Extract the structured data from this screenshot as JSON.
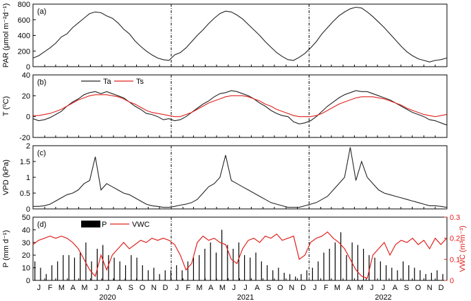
{
  "chart_data": [
    {
      "type": "line",
      "panel_label": "(a)",
      "ylabel": "PAR (μmol m⁻²d⁻¹)",
      "ylim": [
        0,
        800
      ],
      "yticks": [
        0,
        200,
        400,
        600,
        800
      ],
      "x_unit": "day of record (1 Jan 2020 = day 0)",
      "xlim": [
        0,
        1096
      ],
      "series": [
        {
          "color": "#222222",
          "x": [
            0,
            15,
            30,
            45,
            60,
            75,
            90,
            105,
            120,
            135,
            150,
            165,
            180,
            195,
            210,
            225,
            240,
            255,
            270,
            285,
            300,
            315,
            330,
            345,
            360,
            375,
            390,
            405,
            420,
            435,
            450,
            465,
            480,
            495,
            510,
            525,
            540,
            555,
            570,
            585,
            600,
            615,
            630,
            645,
            660,
            675,
            690,
            705,
            720,
            735,
            750,
            765,
            780,
            795,
            810,
            825,
            840,
            855,
            870,
            885,
            900,
            915,
            930,
            945,
            960,
            975,
            990,
            1005,
            1020,
            1035,
            1050,
            1065,
            1080,
            1095
          ],
          "y": [
            110,
            140,
            190,
            240,
            300,
            380,
            420,
            500,
            560,
            620,
            680,
            700,
            690,
            650,
            620,
            560,
            480,
            420,
            330,
            260,
            200,
            150,
            110,
            90,
            80,
            150,
            180,
            240,
            320,
            400,
            470,
            550,
            620,
            680,
            710,
            700,
            660,
            610,
            540,
            470,
            400,
            320,
            250,
            180,
            130,
            90,
            80,
            120,
            170,
            240,
            320,
            420,
            500,
            580,
            650,
            700,
            740,
            760,
            750,
            700,
            640,
            570,
            500,
            420,
            340,
            260,
            190,
            140,
            100,
            80,
            60,
            80,
            90,
            110
          ]
        }
      ]
    },
    {
      "type": "line",
      "panel_label": "(b)",
      "ylabel": "T (⁰C)",
      "ylim": [
        -20,
        40
      ],
      "yticks": [
        -20,
        0,
        20,
        40
      ],
      "legend": [
        "Ta",
        "Ts"
      ],
      "legend_position": "top-left",
      "series": [
        {
          "name": "Ta",
          "color": "#222222",
          "x": [
            0,
            15,
            30,
            45,
            60,
            75,
            90,
            105,
            120,
            135,
            150,
            165,
            180,
            195,
            210,
            225,
            240,
            255,
            270,
            285,
            300,
            315,
            330,
            345,
            360,
            375,
            390,
            405,
            420,
            435,
            450,
            465,
            480,
            495,
            510,
            525,
            540,
            555,
            570,
            585,
            600,
            615,
            630,
            645,
            660,
            675,
            690,
            705,
            720,
            735,
            750,
            765,
            780,
            795,
            810,
            825,
            840,
            855,
            870,
            885,
            900,
            915,
            930,
            945,
            960,
            975,
            990,
            1005,
            1020,
            1035,
            1050,
            1065,
            1080,
            1095
          ],
          "y": [
            -2,
            -4,
            -3,
            -1,
            2,
            5,
            10,
            14,
            17,
            21,
            23,
            24,
            22,
            24,
            22,
            20,
            18,
            14,
            10,
            7,
            3,
            2,
            0,
            -3,
            -2,
            -4,
            -3,
            0,
            4,
            8,
            12,
            15,
            19,
            22,
            23,
            25,
            24,
            22,
            20,
            17,
            13,
            10,
            6,
            3,
            1,
            0,
            -5,
            -7,
            -6,
            -4,
            0,
            5,
            10,
            14,
            18,
            21,
            23,
            25,
            24,
            24,
            22,
            20,
            18,
            16,
            13,
            10,
            7,
            4,
            2,
            0,
            -3,
            -4,
            -6,
            -8
          ]
        },
        {
          "name": "Ts",
          "color": "#e0201b",
          "x": [
            0,
            15,
            30,
            45,
            60,
            75,
            90,
            105,
            120,
            135,
            150,
            165,
            180,
            195,
            210,
            225,
            240,
            255,
            270,
            285,
            300,
            315,
            330,
            345,
            360,
            375,
            390,
            405,
            420,
            435,
            450,
            465,
            480,
            495,
            510,
            525,
            540,
            555,
            570,
            585,
            600,
            615,
            630,
            645,
            660,
            675,
            690,
            705,
            720,
            735,
            750,
            765,
            780,
            795,
            810,
            825,
            840,
            855,
            870,
            885,
            900,
            915,
            930,
            945,
            960,
            975,
            990,
            1005,
            1020,
            1035,
            1050,
            1065,
            1080,
            1095
          ],
          "y": [
            1,
            1,
            2,
            3,
            5,
            7,
            10,
            13,
            16,
            18,
            20,
            21,
            21,
            21,
            20,
            19,
            17,
            14,
            12,
            9,
            6,
            4,
            3,
            2,
            1,
            0,
            0,
            2,
            4,
            7,
            10,
            13,
            15,
            17,
            19,
            20,
            20,
            20,
            19,
            17,
            15,
            12,
            10,
            7,
            5,
            3,
            1,
            0,
            0,
            0,
            1,
            3,
            6,
            9,
            12,
            14,
            16,
            18,
            19,
            19,
            19,
            18,
            17,
            15,
            13,
            11,
            8,
            6,
            4,
            2,
            1,
            0,
            1,
            2
          ]
        }
      ]
    },
    {
      "type": "line",
      "panel_label": "(c)",
      "ylabel": "VPD (kPa)",
      "ylim": [
        0,
        2
      ],
      "yticks": [
        0,
        0.5,
        1,
        1.5,
        2
      ],
      "yticklabels": [
        "0",
        "0.5",
        "1",
        "1.5",
        "2"
      ],
      "series": [
        {
          "color": "#222222",
          "x": [
            0,
            15,
            30,
            45,
            60,
            75,
            90,
            105,
            120,
            135,
            150,
            165,
            180,
            195,
            210,
            225,
            240,
            255,
            270,
            285,
            300,
            315,
            330,
            345,
            360,
            375,
            390,
            405,
            420,
            435,
            450,
            465,
            480,
            495,
            510,
            525,
            540,
            555,
            570,
            585,
            600,
            615,
            630,
            645,
            660,
            675,
            690,
            705,
            720,
            735,
            750,
            765,
            780,
            795,
            810,
            825,
            840,
            855,
            870,
            885,
            900,
            915,
            930,
            945,
            960,
            975,
            990,
            1005,
            1020,
            1035,
            1050,
            1065,
            1080,
            1095
          ],
          "y": [
            0.08,
            0.08,
            0.1,
            0.15,
            0.25,
            0.35,
            0.45,
            0.5,
            0.6,
            0.8,
            0.9,
            1.65,
            0.6,
            0.8,
            0.7,
            0.6,
            0.5,
            0.45,
            0.35,
            0.25,
            0.15,
            0.1,
            0.08,
            0.05,
            0.05,
            0.08,
            0.12,
            0.15,
            0.2,
            0.3,
            0.5,
            0.7,
            0.8,
            1.0,
            1.7,
            0.9,
            0.8,
            0.7,
            0.6,
            0.5,
            0.4,
            0.3,
            0.2,
            0.15,
            0.1,
            0.05,
            0.05,
            0.05,
            0.1,
            0.15,
            0.2,
            0.3,
            0.4,
            0.6,
            0.8,
            1.0,
            1.95,
            0.9,
            1.5,
            1.0,
            0.8,
            0.6,
            0.5,
            0.45,
            0.4,
            0.35,
            0.3,
            0.25,
            0.2,
            0.15,
            0.1,
            0.1,
            0.08,
            0.05
          ]
        }
      ]
    },
    {
      "type": "bar",
      "panel_label": "(d)",
      "ylabel": "P (mm d⁻¹)",
      "ylim": [
        0,
        50
      ],
      "yticks": [
        0,
        10,
        20,
        30,
        40,
        50
      ],
      "legend": [
        "P",
        "VWC"
      ],
      "legend_position": "top-left",
      "series": [
        {
          "name": "P",
          "color": "#000000",
          "axis": "left",
          "kind": "bar",
          "x": [
            5,
            20,
            35,
            50,
            65,
            80,
            95,
            110,
            125,
            140,
            155,
            170,
            185,
            200,
            215,
            230,
            245,
            260,
            275,
            290,
            305,
            320,
            335,
            350,
            365,
            380,
            395,
            410,
            425,
            440,
            455,
            470,
            485,
            500,
            515,
            530,
            545,
            560,
            575,
            590,
            605,
            620,
            635,
            650,
            665,
            680,
            695,
            710,
            725,
            740,
            755,
            770,
            785,
            800,
            815,
            830,
            845,
            860,
            875,
            890,
            905,
            920,
            935,
            950,
            965,
            980,
            995,
            1010,
            1025,
            1040,
            1055,
            1070,
            1085
          ],
          "y": [
            15,
            10,
            5,
            12,
            15,
            20,
            20,
            18,
            22,
            30,
            15,
            25,
            28,
            20,
            18,
            15,
            12,
            20,
            18,
            12,
            8,
            10,
            5,
            8,
            8,
            12,
            8,
            15,
            18,
            20,
            25,
            30,
            22,
            40,
            28,
            25,
            30,
            20,
            18,
            22,
            15,
            12,
            8,
            10,
            6,
            5,
            3,
            5,
            8,
            10,
            15,
            22,
            25,
            30,
            38,
            20,
            30,
            28,
            25,
            20,
            18,
            15,
            12,
            10,
            8,
            15,
            12,
            10,
            8,
            5,
            6,
            8,
            5
          ]
        },
        {
          "name": "VWC",
          "color": "#e0201b",
          "axis": "right",
          "kind": "line",
          "x": [
            0,
            15,
            30,
            45,
            60,
            75,
            90,
            105,
            120,
            135,
            150,
            165,
            180,
            195,
            210,
            225,
            240,
            255,
            270,
            285,
            300,
            315,
            330,
            345,
            360,
            375,
            390,
            405,
            420,
            435,
            450,
            465,
            480,
            495,
            510,
            525,
            540,
            555,
            570,
            585,
            600,
            615,
            630,
            645,
            660,
            675,
            690,
            705,
            720,
            735,
            750,
            765,
            780,
            795,
            810,
            825,
            840,
            855,
            870,
            885,
            900,
            915,
            930,
            945,
            960,
            975,
            990,
            1005,
            1020,
            1035,
            1050,
            1065,
            1080,
            1095
          ],
          "y": [
            0.17,
            0.19,
            0.2,
            0.21,
            0.2,
            0.21,
            0.2,
            0.18,
            0.15,
            0.1,
            0.05,
            0.02,
            0.12,
            0.05,
            0.12,
            0.15,
            0.18,
            0.15,
            0.17,
            0.19,
            0.18,
            0.2,
            0.19,
            0.2,
            0.19,
            0.17,
            0.12,
            0.05,
            0.08,
            0.18,
            0.21,
            0.19,
            0.2,
            0.18,
            0.17,
            0.1,
            0.08,
            0.15,
            0.19,
            0.2,
            0.18,
            0.21,
            0.2,
            0.22,
            0.19,
            0.2,
            0.21,
            0.1,
            0.12,
            0.18,
            0.2,
            0.21,
            0.23,
            0.2,
            0.18,
            0.15,
            0.1,
            0.05,
            0.02,
            0.01,
            0.12,
            0.15,
            0.18,
            0.12,
            0.17,
            0.19,
            0.18,
            0.2,
            0.17,
            0.19,
            0.15,
            0.2,
            0.17,
            0.2
          ]
        }
      ],
      "y2label": "VWC (m³m⁻³)",
      "y2lim": [
        0,
        0.3
      ],
      "y2ticks": [
        0,
        0.1,
        0.2,
        0.3
      ],
      "y2ticklabels": [
        "0",
        "0.1",
        "0.2",
        "0.3"
      ],
      "y2color": "#e0201b"
    }
  ],
  "x_axis": {
    "month_labels": [
      "J",
      "F",
      "M",
      "A",
      "M",
      "J",
      "J",
      "A",
      "S",
      "O",
      "N",
      "D",
      "J",
      "F",
      "M",
      "A",
      "M",
      "J",
      "J",
      "A",
      "S",
      "O",
      "N",
      "D",
      "J",
      "F",
      "M",
      "A",
      "M",
      "J",
      "J",
      "A",
      "S",
      "O",
      "N",
      "D"
    ],
    "year_labels": [
      "2020",
      "2021",
      "2022"
    ],
    "year_start_days": [
      0,
      366,
      731
    ],
    "year_divider_days": [
      366,
      731
    ]
  },
  "colors": {
    "black_series": "#222222",
    "red_series": "#e0201b",
    "axes": "#000000"
  }
}
